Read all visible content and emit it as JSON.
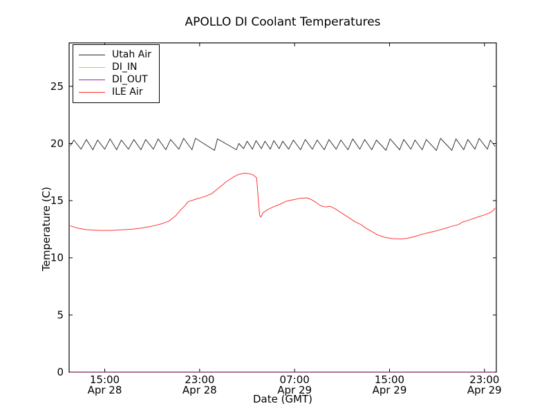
{
  "chart_data": {
    "type": "line",
    "title": "APOLLO DI Coolant Temperatures",
    "xlabel": "Date (GMT)",
    "ylabel": "Temperature (C)",
    "xlim_hours_from_apr28_1200": [
      0,
      36
    ],
    "ylim": [
      0,
      28.8
    ],
    "grid": false,
    "legend_position": "upper left",
    "background_color": "#ffffff",
    "axis_color": "#000000",
    "y_ticks": [
      0,
      5,
      10,
      15,
      20,
      25
    ],
    "x_ticks": [
      {
        "hour": 3,
        "time": "15:00",
        "date": "Apr 28"
      },
      {
        "hour": 11,
        "time": "23:00",
        "date": "Apr 28"
      },
      {
        "hour": 19,
        "time": "07:00",
        "date": "Apr 29"
      },
      {
        "hour": 27,
        "time": "15:00",
        "date": "Apr 29"
      },
      {
        "hour": 35,
        "time": "23:00",
        "date": "Apr 29"
      }
    ],
    "series": [
      {
        "name": "Utah Air",
        "color": "#000000",
        "description": "thermostat-style sawtooth oscillating ~19.4-20.5 C",
        "points": [
          [
            0.1,
            19.8
          ],
          [
            0.4,
            20.3
          ],
          [
            1.0,
            19.5
          ],
          [
            1.45,
            20.35
          ],
          [
            2.0,
            19.45
          ],
          [
            2.4,
            20.3
          ],
          [
            3.0,
            19.5
          ],
          [
            3.45,
            20.4
          ],
          [
            4.0,
            19.45
          ],
          [
            4.4,
            20.3
          ],
          [
            5.0,
            19.5
          ],
          [
            5.45,
            20.35
          ],
          [
            6.05,
            19.45
          ],
          [
            6.45,
            20.35
          ],
          [
            7.1,
            19.5
          ],
          [
            7.5,
            20.4
          ],
          [
            8.15,
            19.45
          ],
          [
            8.55,
            20.35
          ],
          [
            9.25,
            19.5
          ],
          [
            9.65,
            20.45
          ],
          [
            10.35,
            19.45
          ],
          [
            10.65,
            20.45
          ],
          [
            12.25,
            19.4
          ],
          [
            12.5,
            20.4
          ],
          [
            14.1,
            19.45
          ],
          [
            14.3,
            20.0
          ],
          [
            14.7,
            19.55
          ],
          [
            15.0,
            20.2
          ],
          [
            15.45,
            19.5
          ],
          [
            15.75,
            20.25
          ],
          [
            16.2,
            19.55
          ],
          [
            16.5,
            20.2
          ],
          [
            16.95,
            19.5
          ],
          [
            17.25,
            20.25
          ],
          [
            17.7,
            19.55
          ],
          [
            18.0,
            20.2
          ],
          [
            18.5,
            19.5
          ],
          [
            18.9,
            20.3
          ],
          [
            19.5,
            19.45
          ],
          [
            19.9,
            20.35
          ],
          [
            20.5,
            19.5
          ],
          [
            20.9,
            20.3
          ],
          [
            21.5,
            19.45
          ],
          [
            21.9,
            20.35
          ],
          [
            22.5,
            19.5
          ],
          [
            22.9,
            20.3
          ],
          [
            23.5,
            19.45
          ],
          [
            23.9,
            20.4
          ],
          [
            24.5,
            19.5
          ],
          [
            24.9,
            20.35
          ],
          [
            25.5,
            19.45
          ],
          [
            25.9,
            20.3
          ],
          [
            26.7,
            19.4
          ],
          [
            27.05,
            20.4
          ],
          [
            27.85,
            19.45
          ],
          [
            28.2,
            20.35
          ],
          [
            28.8,
            19.5
          ],
          [
            29.15,
            20.3
          ],
          [
            29.75,
            19.45
          ],
          [
            30.1,
            20.35
          ],
          [
            30.95,
            19.4
          ],
          [
            31.3,
            20.45
          ],
          [
            32.25,
            19.4
          ],
          [
            32.6,
            20.4
          ],
          [
            33.25,
            19.45
          ],
          [
            33.6,
            20.35
          ],
          [
            34.2,
            19.5
          ],
          [
            34.55,
            20.45
          ],
          [
            35.25,
            19.5
          ],
          [
            35.5,
            20.3
          ],
          [
            35.9,
            19.75
          ]
        ]
      },
      {
        "name": "DI_IN",
        "color": "#ffa500",
        "description": "flat at 0 C along bottom axis",
        "points": [
          [
            0.1,
            0
          ],
          [
            35.9,
            0
          ]
        ]
      },
      {
        "name": "DI_OUT",
        "color": "#800080",
        "description": "flat at 0 C along bottom axis",
        "points": [
          [
            0.1,
            0
          ],
          [
            35.9,
            0
          ]
        ]
      },
      {
        "name": "ILE Air",
        "color": "#ff0000",
        "description": "slow wave 12.4 -> 17.4 peak, sharp drop to 13.5, recovery to 15.3, min 11.65, rise to 14.4",
        "points": [
          [
            0.1,
            12.8
          ],
          [
            0.7,
            12.6
          ],
          [
            1.5,
            12.45
          ],
          [
            2.5,
            12.4
          ],
          [
            3.5,
            12.4
          ],
          [
            4.5,
            12.45
          ],
          [
            5.3,
            12.5
          ],
          [
            6.1,
            12.6
          ],
          [
            6.9,
            12.75
          ],
          [
            7.7,
            12.95
          ],
          [
            8.4,
            13.2
          ],
          [
            9.0,
            13.7
          ],
          [
            9.4,
            14.2
          ],
          [
            9.8,
            14.6
          ],
          [
            10.0,
            14.9
          ],
          [
            10.6,
            15.1
          ],
          [
            11.4,
            15.35
          ],
          [
            12.0,
            15.6
          ],
          [
            12.6,
            16.1
          ],
          [
            13.3,
            16.7
          ],
          [
            13.9,
            17.1
          ],
          [
            14.3,
            17.3
          ],
          [
            14.8,
            17.4
          ],
          [
            15.2,
            17.35
          ],
          [
            15.5,
            17.25
          ],
          [
            15.8,
            17.0
          ],
          [
            16.05,
            13.75
          ],
          [
            16.15,
            13.55
          ],
          [
            16.35,
            13.95
          ],
          [
            16.7,
            14.2
          ],
          [
            17.2,
            14.45
          ],
          [
            17.8,
            14.7
          ],
          [
            18.3,
            14.95
          ],
          [
            19.0,
            15.1
          ],
          [
            19.4,
            15.2
          ],
          [
            20.0,
            15.25
          ],
          [
            20.4,
            15.1
          ],
          [
            20.8,
            14.85
          ],
          [
            21.2,
            14.55
          ],
          [
            21.6,
            14.45
          ],
          [
            22.0,
            14.5
          ],
          [
            22.4,
            14.3
          ],
          [
            23.0,
            13.9
          ],
          [
            23.6,
            13.5
          ],
          [
            24.1,
            13.15
          ],
          [
            24.6,
            12.9
          ],
          [
            25.0,
            12.6
          ],
          [
            25.5,
            12.3
          ],
          [
            26.0,
            12.0
          ],
          [
            26.6,
            11.8
          ],
          [
            27.2,
            11.68
          ],
          [
            27.9,
            11.65
          ],
          [
            28.5,
            11.7
          ],
          [
            29.1,
            11.85
          ],
          [
            29.7,
            12.05
          ],
          [
            30.3,
            12.2
          ],
          [
            30.9,
            12.35
          ],
          [
            31.6,
            12.55
          ],
          [
            32.2,
            12.75
          ],
          [
            32.8,
            12.9
          ],
          [
            33.1,
            13.1
          ],
          [
            33.7,
            13.3
          ],
          [
            34.4,
            13.55
          ],
          [
            35.0,
            13.75
          ],
          [
            35.5,
            13.95
          ],
          [
            35.75,
            14.15
          ],
          [
            35.9,
            14.35
          ]
        ]
      }
    ]
  }
}
